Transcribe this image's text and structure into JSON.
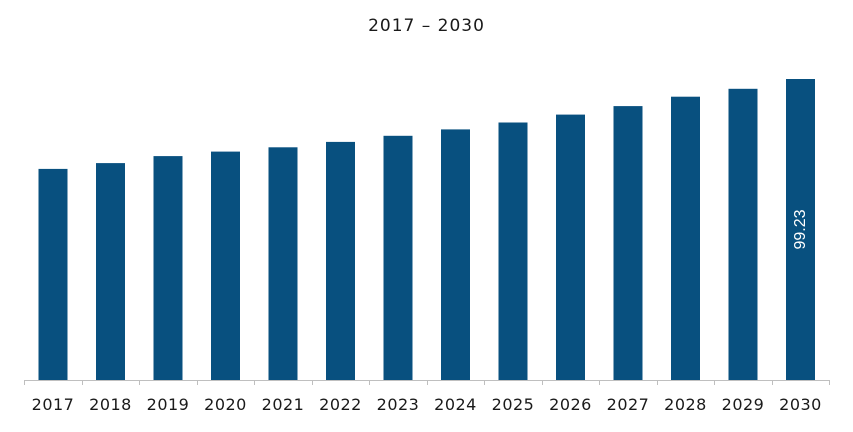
{
  "chart_data": {
    "type": "bar",
    "title": "2017 – 2030",
    "xlabel": "",
    "ylabel": "",
    "categories": [
      "2017",
      "2018",
      "2019",
      "2020",
      "2021",
      "2022",
      "2023",
      "2024",
      "2025",
      "2026",
      "2027",
      "2028",
      "2029",
      "2030"
    ],
    "values": [
      69.6,
      71.5,
      73.8,
      75.3,
      76.7,
      78.5,
      80.5,
      82.6,
      84.9,
      87.5,
      90.3,
      93.4,
      96.0,
      99.23
    ],
    "data_labels": [
      null,
      null,
      null,
      null,
      null,
      null,
      null,
      null,
      null,
      null,
      null,
      null,
      null,
      "99.23"
    ],
    "ylim": [
      0,
      100
    ],
    "grid": false,
    "legend": "none",
    "bar_color": "#08507f",
    "axis_color": "#bfbfbf",
    "label_color": "#ffffff"
  }
}
